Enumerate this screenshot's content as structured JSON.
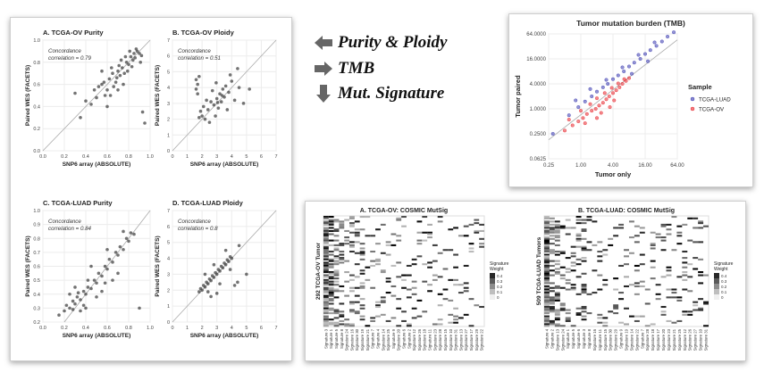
{
  "workflow": {
    "items": [
      {
        "label": "Purity & Ploidy",
        "icon": "arrow-left-icon"
      },
      {
        "label": "TMB",
        "icon": "arrow-right-icon"
      },
      {
        "label": "Mut. Signature",
        "icon": "arrow-down-icon"
      }
    ]
  },
  "colors": {
    "point": "#444444",
    "luad": "#3b3bb0",
    "ov": "#e8282f",
    "identity": "#aaaaaa"
  },
  "chart_data": [
    {
      "id": "ov-purity",
      "type": "scatter",
      "title": "A. TCGA-OV Purity",
      "annotation": [
        "Concordance",
        "correlation = 0.79"
      ],
      "xlabel": "SNP6 array (ABSOLUTE)",
      "ylabel": "Paired WES (FACETS)",
      "xlim": [
        0,
        1
      ],
      "ylim": [
        0,
        1
      ],
      "xticks": [
        "0.0",
        "0.2",
        "0.4",
        "0.6",
        "0.8",
        "1.0"
      ],
      "yticks": [
        "0.0",
        "0.2",
        "0.4",
        "0.6",
        "0.8",
        "1.0"
      ],
      "grid": true,
      "points": [
        [
          0.45,
          0.42
        ],
        [
          0.5,
          0.48
        ],
        [
          0.55,
          0.6
        ],
        [
          0.6,
          0.55
        ],
        [
          0.62,
          0.65
        ],
        [
          0.65,
          0.7
        ],
        [
          0.68,
          0.62
        ],
        [
          0.7,
          0.72
        ],
        [
          0.72,
          0.68
        ],
        [
          0.74,
          0.75
        ],
        [
          0.76,
          0.7
        ],
        [
          0.78,
          0.8
        ],
        [
          0.8,
          0.78
        ],
        [
          0.82,
          0.85
        ],
        [
          0.84,
          0.82
        ],
        [
          0.85,
          0.88
        ],
        [
          0.86,
          0.84
        ],
        [
          0.88,
          0.9
        ],
        [
          0.9,
          0.88
        ],
        [
          0.92,
          0.86
        ],
        [
          0.58,
          0.5
        ],
        [
          0.52,
          0.58
        ],
        [
          0.48,
          0.55
        ],
        [
          0.66,
          0.58
        ],
        [
          0.73,
          0.82
        ],
        [
          0.79,
          0.72
        ],
        [
          0.83,
          0.76
        ],
        [
          0.87,
          0.92
        ],
        [
          0.91,
          0.8
        ],
        [
          0.35,
          0.3
        ],
        [
          0.4,
          0.45
        ],
        [
          0.3,
          0.52
        ],
        [
          0.6,
          0.4
        ],
        [
          0.93,
          0.35
        ],
        [
          0.95,
          0.25
        ],
        [
          0.55,
          0.72
        ],
        [
          0.7,
          0.55
        ],
        [
          0.75,
          0.6
        ],
        [
          0.64,
          0.75
        ],
        [
          0.81,
          0.9
        ],
        [
          0.77,
          0.85
        ],
        [
          0.69,
          0.66
        ],
        [
          0.71,
          0.77
        ],
        [
          0.57,
          0.62
        ],
        [
          0.63,
          0.5
        ]
      ]
    },
    {
      "id": "ov-ploidy",
      "type": "scatter",
      "title": "B. TCGA-OV Ploidy",
      "annotation": [
        "Concordance",
        "correlation = 0.51"
      ],
      "xlabel": "SNP6 array (ABSOLUTE)",
      "ylabel": "Paired WES (FACETS)",
      "xlim": [
        0,
        7
      ],
      "ylim": [
        0,
        7
      ],
      "xticks": [
        "0",
        "1",
        "2",
        "3",
        "4",
        "5",
        "6",
        "7"
      ],
      "yticks": [
        "0",
        "1",
        "2",
        "3",
        "4",
        "5",
        "6",
        "7"
      ],
      "grid": true,
      "points": [
        [
          1.6,
          4.5
        ],
        [
          1.7,
          4.2
        ],
        [
          1.6,
          3.9
        ],
        [
          1.7,
          3.6
        ],
        [
          1.8,
          4.7
        ],
        [
          1.9,
          2.5
        ],
        [
          2.0,
          2.2
        ],
        [
          2.1,
          2.8
        ],
        [
          2.2,
          2.0
        ],
        [
          2.4,
          2.6
        ],
        [
          2.6,
          3.1
        ],
        [
          2.8,
          2.9
        ],
        [
          3.0,
          3.3
        ],
        [
          3.1,
          2.7
        ],
        [
          3.2,
          3.6
        ],
        [
          3.3,
          3.1
        ],
        [
          3.4,
          3.9
        ],
        [
          3.5,
          3.4
        ],
        [
          3.6,
          4.1
        ],
        [
          3.8,
          3.7
        ],
        [
          4.0,
          4.4
        ],
        [
          4.2,
          3.2
        ],
        [
          4.5,
          4.0
        ],
        [
          4.8,
          3.0
        ],
        [
          5.2,
          3.9
        ],
        [
          2.5,
          1.8
        ],
        [
          2.9,
          2.2
        ],
        [
          3.7,
          2.6
        ],
        [
          2.3,
          3.2
        ],
        [
          3.9,
          4.8
        ],
        [
          4.4,
          5.2
        ],
        [
          1.8,
          2.1
        ],
        [
          2.7,
          3.8
        ],
        [
          3.35,
          3.5
        ],
        [
          3.05,
          3.05
        ],
        [
          2.95,
          4.3
        ]
      ]
    },
    {
      "id": "luad-purity",
      "type": "scatter",
      "title": "C. TCGA-LUAD Purity",
      "annotation": [
        "Concordance",
        "correlation = 0.84"
      ],
      "xlabel": "SNP6 array (ABSOLUTE)",
      "ylabel": "Paired WES (FACETS)",
      "xlim": [
        0,
        1
      ],
      "ylim": [
        0.2,
        1
      ],
      "xticks": [
        "0.0",
        "0.2",
        "0.4",
        "0.6",
        "0.8",
        "1.0"
      ],
      "yticks": [
        "0.2",
        "0.3",
        "0.4",
        "0.5",
        "0.6",
        "0.7",
        "0.8",
        "0.9",
        "1.0"
      ],
      "grid": true,
      "points": [
        [
          0.15,
          0.25
        ],
        [
          0.2,
          0.28
        ],
        [
          0.22,
          0.32
        ],
        [
          0.25,
          0.3
        ],
        [
          0.28,
          0.35
        ],
        [
          0.3,
          0.33
        ],
        [
          0.32,
          0.38
        ],
        [
          0.35,
          0.36
        ],
        [
          0.38,
          0.42
        ],
        [
          0.4,
          0.4
        ],
        [
          0.42,
          0.45
        ],
        [
          0.45,
          0.44
        ],
        [
          0.48,
          0.5
        ],
        [
          0.5,
          0.48
        ],
        [
          0.52,
          0.55
        ],
        [
          0.55,
          0.53
        ],
        [
          0.58,
          0.6
        ],
        [
          0.6,
          0.58
        ],
        [
          0.62,
          0.65
        ],
        [
          0.65,
          0.63
        ],
        [
          0.68,
          0.7
        ],
        [
          0.7,
          0.68
        ],
        [
          0.72,
          0.74
        ],
        [
          0.75,
          0.72
        ],
        [
          0.78,
          0.8
        ],
        [
          0.8,
          0.78
        ],
        [
          0.82,
          0.84
        ],
        [
          0.85,
          0.83
        ],
        [
          0.3,
          0.45
        ],
        [
          0.4,
          0.3
        ],
        [
          0.5,
          0.38
        ],
        [
          0.6,
          0.72
        ],
        [
          0.7,
          0.55
        ],
        [
          0.45,
          0.6
        ],
        [
          0.55,
          0.42
        ],
        [
          0.35,
          0.28
        ],
        [
          0.25,
          0.4
        ],
        [
          0.65,
          0.5
        ],
        [
          0.75,
          0.85
        ],
        [
          0.9,
          0.3
        ],
        [
          0.38,
          0.32
        ],
        [
          0.42,
          0.5
        ],
        [
          0.58,
          0.48
        ],
        [
          0.33,
          0.41
        ],
        [
          0.28,
          0.29
        ]
      ]
    },
    {
      "id": "luad-ploidy",
      "type": "scatter",
      "title": "D. TCGA-LUAD Ploidy",
      "annotation": [
        "Concordance",
        "correlation = 0.8"
      ],
      "xlabel": "SNP6 array (ABSOLUTE)",
      "ylabel": "Paired WES (FACETS)",
      "xlim": [
        0,
        7
      ],
      "ylim": [
        0,
        7
      ],
      "xticks": [
        "0",
        "1",
        "2",
        "3",
        "4",
        "5",
        "6",
        "7"
      ],
      "yticks": [
        "0",
        "1",
        "2",
        "3",
        "4",
        "5",
        "6",
        "7"
      ],
      "grid": true,
      "points": [
        [
          1.8,
          1.9
        ],
        [
          1.9,
          2.1
        ],
        [
          2.0,
          2.0
        ],
        [
          2.1,
          2.3
        ],
        [
          2.2,
          2.2
        ],
        [
          2.3,
          2.5
        ],
        [
          2.4,
          2.4
        ],
        [
          2.5,
          2.7
        ],
        [
          2.6,
          2.6
        ],
        [
          2.7,
          2.9
        ],
        [
          2.8,
          2.8
        ],
        [
          2.9,
          3.1
        ],
        [
          3.0,
          3.0
        ],
        [
          3.1,
          3.3
        ],
        [
          3.2,
          3.2
        ],
        [
          3.3,
          3.5
        ],
        [
          3.4,
          3.4
        ],
        [
          3.5,
          3.7
        ],
        [
          3.6,
          3.6
        ],
        [
          3.7,
          3.9
        ],
        [
          3.8,
          3.8
        ],
        [
          3.9,
          4.1
        ],
        [
          4.0,
          4.0
        ],
        [
          4.2,
          2.3
        ],
        [
          4.4,
          2.5
        ],
        [
          3.0,
          1.8
        ],
        [
          2.6,
          1.6
        ],
        [
          3.6,
          4.5
        ],
        [
          4.5,
          4.8
        ],
        [
          2.2,
          3.0
        ],
        [
          5.0,
          3.0
        ],
        [
          2.4,
          1.9
        ],
        [
          3.2,
          2.4
        ],
        [
          3.9,
          3.3
        ],
        [
          2.8,
          3.6
        ]
      ]
    },
    {
      "id": "tmb",
      "type": "scatter",
      "title": "Tumor mutation burden (TMB)",
      "xlabel": "Tumor only",
      "ylabel": "Tumor paired",
      "scale": "log2",
      "xlim": [
        0.25,
        64
      ],
      "ylim": [
        0.0625,
        64
      ],
      "xticks": [
        "0.25",
        "1.00",
        "4.00",
        "16.00",
        "64.00"
      ],
      "yticks": [
        "0.0625",
        "0.2500",
        "1.0000",
        "4.0000",
        "16.0000",
        "64.0000"
      ],
      "grid": true,
      "legend": {
        "title": "Sample",
        "position": "right"
      },
      "series": [
        {
          "name": "TCGA-LUAD",
          "color": "#3b3bb0",
          "points": [
            [
              0.3,
              0.25
            ],
            [
              0.6,
              0.7
            ],
            [
              0.9,
              1.1
            ],
            [
              1.2,
              1.5
            ],
            [
              1.6,
              2.0
            ],
            [
              2.0,
              2.6
            ],
            [
              2.6,
              3.3
            ],
            [
              3.2,
              4.0
            ],
            [
              4.0,
              5.2
            ],
            [
              5.0,
              6.4
            ],
            [
              6.4,
              8.0
            ],
            [
              8.0,
              10.5
            ],
            [
              10,
              13
            ],
            [
              13,
              16
            ],
            [
              16,
              21
            ],
            [
              20,
              26
            ],
            [
              26,
              33
            ],
            [
              33,
              42
            ],
            [
              42,
              55
            ],
            [
              55,
              70
            ],
            [
              3,
              5
            ],
            [
              6,
              10
            ],
            [
              12,
              20
            ],
            [
              24,
              40
            ],
            [
              1.5,
              3
            ],
            [
              9,
              7
            ],
            [
              18,
              14
            ],
            [
              0.8,
              1.6
            ]
          ]
        },
        {
          "name": "TCGA-OV",
          "color": "#e8282f",
          "points": [
            [
              0.5,
              0.3
            ],
            [
              0.7,
              0.4
            ],
            [
              0.9,
              0.5
            ],
            [
              1.1,
              0.6
            ],
            [
              1.3,
              0.75
            ],
            [
              1.6,
              0.9
            ],
            [
              1.9,
              1.0
            ],
            [
              2.2,
              1.2
            ],
            [
              2.6,
              1.4
            ],
            [
              3.0,
              1.7
            ],
            [
              3.4,
              2.0
            ],
            [
              4.0,
              2.4
            ],
            [
              4.6,
              2.8
            ],
            [
              5.3,
              3.3
            ],
            [
              6.0,
              4.0
            ],
            [
              7.0,
              4.7
            ],
            [
              8.0,
              5.5
            ],
            [
              1.0,
              0.9
            ],
            [
              1.5,
              1.3
            ],
            [
              2.0,
              1.8
            ],
            [
              2.8,
              2.4
            ],
            [
              3.8,
              3.2
            ],
            [
              5.0,
              4.1
            ],
            [
              6.5,
              5.2
            ],
            [
              2.4,
              0.8
            ],
            [
              3.5,
              1.1
            ],
            [
              1.2,
              0.45
            ],
            [
              4.2,
              1.6
            ],
            [
              2.0,
              0.6
            ],
            [
              0.6,
              0.55
            ]
          ]
        }
      ]
    },
    {
      "id": "ov-mutsig",
      "type": "heatmap",
      "title": "A. TCGA-OV: COSMIC MutSig",
      "ylabel": "292 TCGA-OV Tumor",
      "columns": [
        "Signature 3",
        "Signature 1",
        "Signature 5",
        "Signature 8",
        "Signature 24",
        "Signature 16",
        "Signature 30",
        "Signature 19",
        "Signature 21",
        "Signature 7",
        "Signature 4",
        "Signature 14",
        "Signature 25",
        "Signature 9",
        "Signature 20",
        "Signature 6",
        "Signature 2",
        "Signature 12",
        "Signature 26",
        "Signature 18",
        "Signature 11",
        "Signature 23",
        "Signature 28",
        "Signature 15",
        "Signature 10",
        "Signature 31",
        "Signature 13",
        "Signature 27",
        "Signature 17",
        "Signature 29",
        "Signature 22"
      ],
      "legend": {
        "title": "Signature Weight",
        "ticks": [
          "0.4",
          "0.3",
          "0.2",
          "0.1",
          "0"
        ]
      }
    },
    {
      "id": "luad-mutsig",
      "type": "heatmap",
      "title": "B. TCGA-LUAD: COSMIC MutSig",
      "ylabel": "509 TCGA-LUAD Tumors",
      "columns": [
        "Signature 4",
        "Signature 2",
        "Signature 13",
        "Signature 24",
        "Signature 1",
        "Signature 5",
        "Signature 6",
        "Signature 3",
        "Signature 8",
        "Signature 16",
        "Signature 11",
        "Signature 15",
        "Signature 30",
        "Signature 29",
        "Signature 9",
        "Signature 19",
        "Signature 14",
        "Signature 22",
        "Signature 7",
        "Signature 28",
        "Signature 18",
        "Signature 17",
        "Signature 20",
        "Signature 23",
        "Signature 21",
        "Signature 25",
        "Signature 12",
        "Signature 26",
        "Signature 27",
        "Signature 10",
        "Signature 31"
      ],
      "legend": {
        "title": "Signature Weight",
        "ticks": [
          "0.4",
          "0.3",
          "0.2",
          "0.1",
          "0"
        ]
      }
    }
  ]
}
